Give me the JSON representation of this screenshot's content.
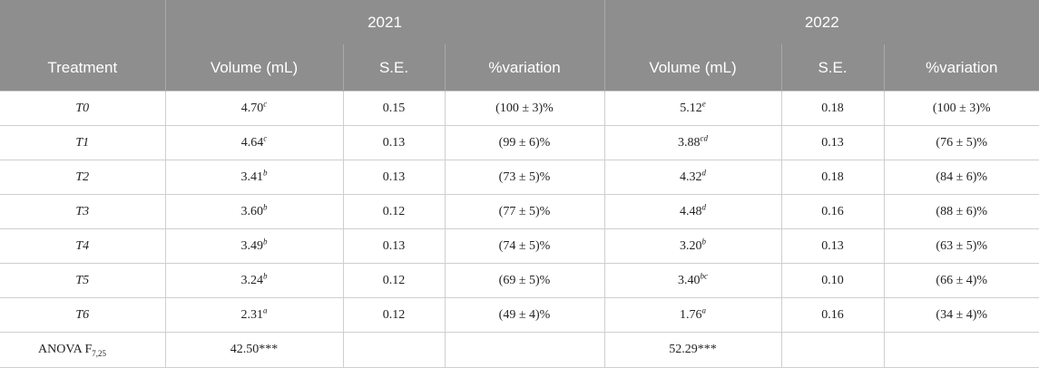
{
  "header": {
    "years": [
      "2021",
      "2022"
    ],
    "treatment_label": "Treatment",
    "col_volume": "Volume (mL)",
    "col_se": "S.E.",
    "col_variation": "%variation"
  },
  "rows": [
    {
      "treatment": "T0",
      "v2021": "4.70",
      "s2021": "c",
      "se2021": "0.15",
      "var2021": "(100 ± 3)%",
      "v2022": "5.12",
      "s2022": "e",
      "se2022": "0.18",
      "var2022": "(100 ± 3)%"
    },
    {
      "treatment": "T1",
      "v2021": "4.64",
      "s2021": "c",
      "se2021": "0.13",
      "var2021": "(99 ± 6)%",
      "v2022": "3.88",
      "s2022": "cd",
      "se2022": "0.13",
      "var2022": "(76 ± 5)%"
    },
    {
      "treatment": "T2",
      "v2021": "3.41",
      "s2021": "b",
      "se2021": "0.13",
      "var2021": "(73 ± 5)%",
      "v2022": "4.32",
      "s2022": "d",
      "se2022": "0.18",
      "var2022": "(84 ± 6)%"
    },
    {
      "treatment": "T3",
      "v2021": "3.60",
      "s2021": "b",
      "se2021": "0.12",
      "var2021": "(77 ± 5)%",
      "v2022": "4.48",
      "s2022": "d",
      "se2022": "0.16",
      "var2022": "(88 ± 6)%"
    },
    {
      "treatment": "T4",
      "v2021": "3.49",
      "s2021": "b",
      "se2021": "0.13",
      "var2021": "(74 ± 5)%",
      "v2022": "3.20",
      "s2022": "b",
      "se2022": "0.13",
      "var2022": "(63 ± 5)%"
    },
    {
      "treatment": "T5",
      "v2021": "3.24",
      "s2021": "b",
      "se2021": "0.12",
      "var2021": "(69 ± 5)%",
      "v2022": "3.40",
      "s2022": "bc",
      "se2022": "0.10",
      "var2022": "(66 ± 4)%"
    },
    {
      "treatment": "T6",
      "v2021": "2.31",
      "s2021": "a",
      "se2021": "0.12",
      "var2021": "(49 ± 4)%",
      "v2022": "1.76",
      "s2022": "a",
      "se2022": "0.16",
      "var2022": "(34 ± 4)%"
    }
  ],
  "anova": {
    "label": "ANOVA F",
    "label_sub": "7,25",
    "f2021": "42.50***",
    "f2022": "52.29***"
  },
  "colors": {
    "header_bg": "#8e8e8e",
    "header_text": "#ffffff",
    "grid": "#cfcfcf"
  }
}
